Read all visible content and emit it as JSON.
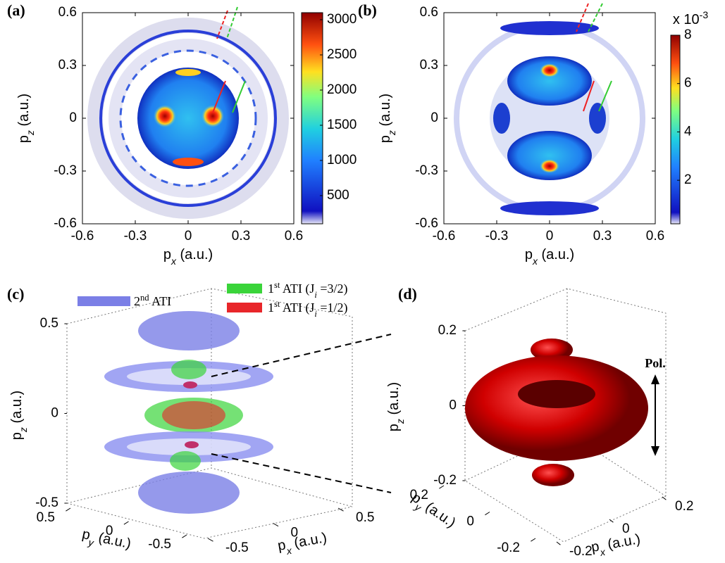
{
  "chart_data": [
    {
      "type": "heatmap",
      "panel_label": "(a)",
      "xlabel": {
        "base": "p",
        "sub": "x",
        "rest": " (a.u.)"
      },
      "ylabel": {
        "base": "p",
        "sub": "z",
        "rest": " (a.u.)"
      },
      "xlim": [
        -0.6,
        0.6
      ],
      "xticks": [
        -0.6,
        -0.3,
        0,
        0.3,
        0.6
      ],
      "ylim": [
        -0.6,
        0.6
      ],
      "yticks": [
        -0.6,
        -0.3,
        0,
        0.3,
        0.6
      ],
      "colorbar": {
        "lim": [
          100,
          3100
        ],
        "ticks": [
          500,
          1000,
          1500,
          2000,
          2500,
          3000
        ]
      }
    },
    {
      "type": "heatmap",
      "panel_label": "(b)",
      "xlabel": {
        "base": "p",
        "sub": "x",
        "rest": " (a.u.)"
      },
      "ylabel": {
        "base": "p",
        "sub": "z",
        "rest": " (a.u.)"
      },
      "xlim": [
        -0.6,
        0.6
      ],
      "xticks": [
        -0.6,
        -0.3,
        0,
        0.3,
        0.6
      ],
      "ylim": [
        -0.6,
        0.6
      ],
      "yticks": [
        -0.6,
        -0.3,
        0,
        0.3,
        0.6
      ],
      "colorbar": {
        "lim": [
          0.2,
          8
        ],
        "ticks": [
          2,
          4,
          6,
          8
        ],
        "scale_label": {
          "text": "x 10",
          "exponent": "-3"
        }
      }
    },
    {
      "type": "isosurface",
      "panel_label": "(c)",
      "xlabel": {
        "base": "p",
        "sub": "x",
        "rest": " (a.u.)"
      },
      "ylabel": {
        "base": "p",
        "sub": "y",
        "rest": " (a.u.)"
      },
      "zlabel": {
        "base": "p",
        "sub": "z",
        "rest": " (a.u.)"
      },
      "xlim": [
        -0.5,
        0.5
      ],
      "xticks": [
        -0.5,
        0,
        0.5
      ],
      "ylim": [
        -0.5,
        0.5
      ],
      "yticks": [
        -0.5,
        0,
        0.5
      ],
      "zlim": [
        -0.5,
        0.5
      ],
      "zticks": [
        -0.5,
        0,
        0.5
      ],
      "series": [
        {
          "name": {
            "ord": "2",
            "suffix": "nd",
            "rest": " ATI"
          },
          "color": "#7b7fe6"
        },
        {
          "name": {
            "ord": "1",
            "suffix": "st",
            "rest": " ATI (J",
            "sub": "i",
            "tail": " =3/2)"
          },
          "color": "#3ad43a"
        },
        {
          "name": {
            "ord": "1",
            "suffix": "st",
            "rest": " ATI (J",
            "sub": "i",
            "tail": " =1/2)"
          },
          "color": "#e8262a"
        }
      ]
    },
    {
      "type": "isosurface",
      "panel_label": "(d)",
      "xlabel": {
        "base": "p",
        "sub": "x",
        "rest": " (a.u.)"
      },
      "ylabel": {
        "base": "p",
        "sub": "y",
        "rest": " (a.u.)"
      },
      "zlabel": {
        "base": "p",
        "sub": "z",
        "rest": " (a.u.)"
      },
      "xlim": [
        -0.2,
        0.2
      ],
      "xticks": [
        -0.2,
        0,
        0.2
      ],
      "ylim": [
        -0.2,
        0.2
      ],
      "yticks": [
        -0.2,
        0,
        0.2
      ],
      "zlim": [
        -0.2,
        0.2
      ],
      "zticks": [
        -0.2,
        0,
        0.2
      ],
      "annotation": "Pol."
    }
  ]
}
